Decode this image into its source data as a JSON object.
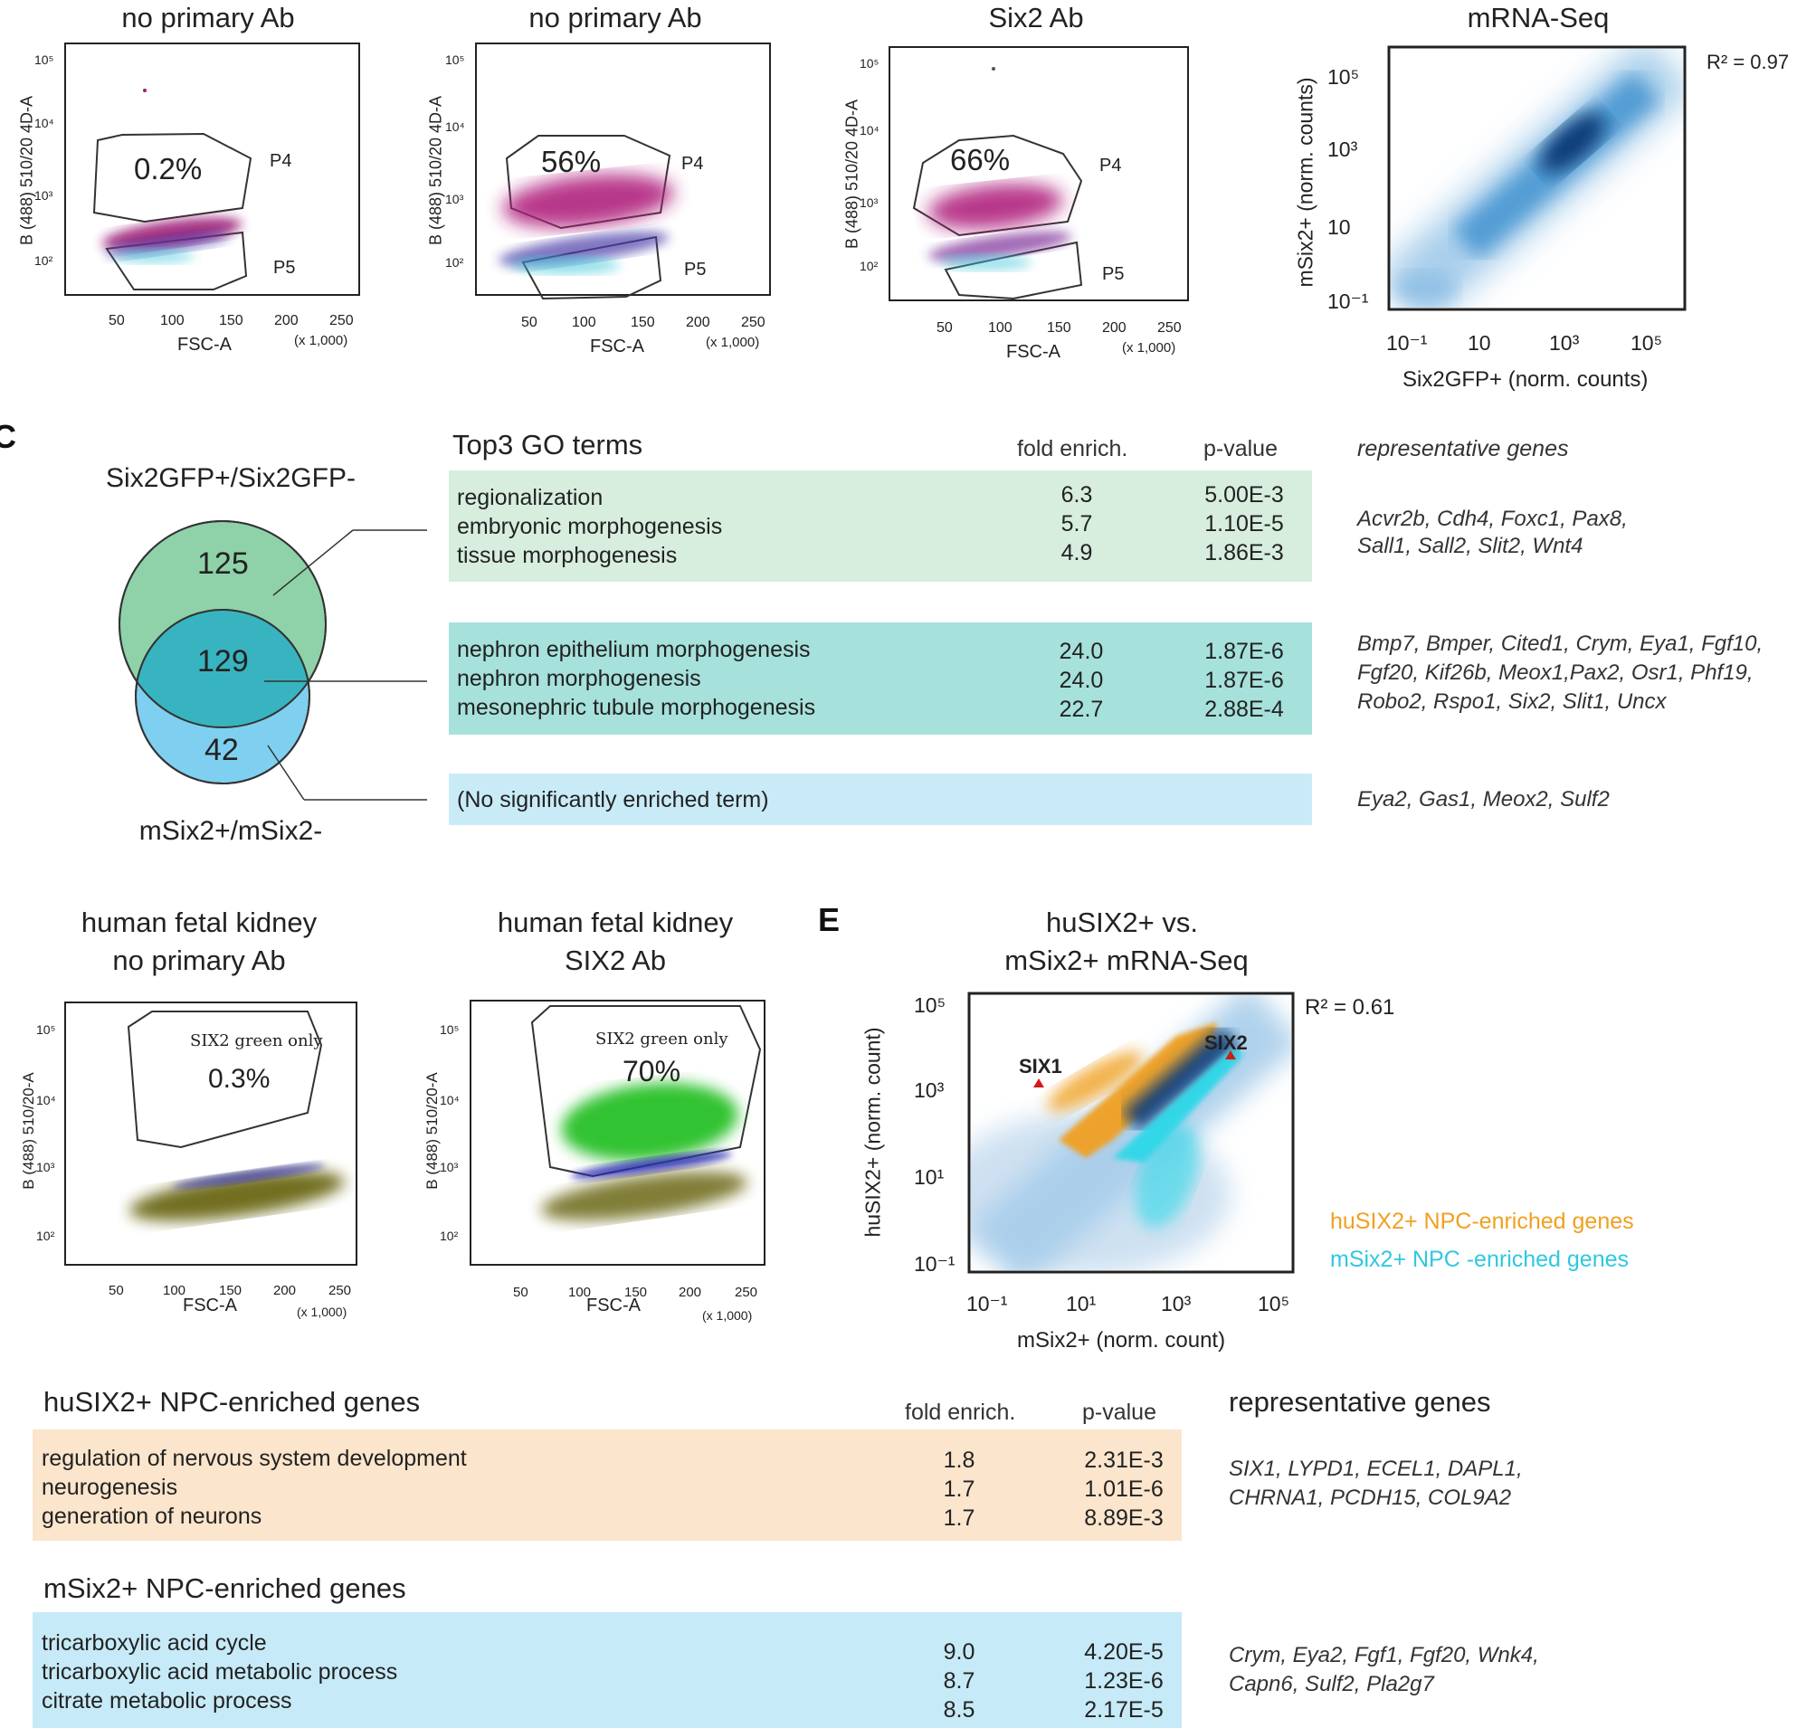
{
  "panel_b": {
    "plots": [
      {
        "title": "no primary Ab",
        "gate_p4_pct": "0.2%",
        "gate_p4": "P4",
        "gate_p5": "P5"
      },
      {
        "title": "no primary Ab",
        "gate_p4_pct": "56%",
        "gate_p4": "P4",
        "gate_p5": "P5"
      },
      {
        "title": "Six2 Ab",
        "gate_p4_pct": "66%",
        "gate_p4": "P4",
        "gate_p5": "P5"
      }
    ],
    "ylabel": "B (488) 510/20 4D-A",
    "xlabel": "FSC-A",
    "xscale_note": "(x 1,000)",
    "xticks": [
      "50",
      "100",
      "150",
      "200",
      "250"
    ],
    "yticks": [
      "10²",
      "10³",
      "10⁴",
      "10⁵"
    ]
  },
  "panel_mrna": {
    "title": "mRNA-Seq",
    "r2": "R² = 0.97",
    "xlabel": "Six2GFP+ (norm. counts)",
    "ylabel": "mSix2+ (norm. counts)",
    "ticks": [
      "10⁻¹",
      "10",
      "10³",
      "10⁵"
    ],
    "series_color": "#2a7fc0"
  },
  "panel_c": {
    "label": "C",
    "venn_top": "Six2GFP+/Six2GFP-",
    "venn_bottom": "mSix2+/mSix2-",
    "venn_counts": [
      "125",
      "129",
      "42"
    ],
    "go_header": "Top3 GO terms",
    "col_fold": "fold enrich.",
    "col_p": "p-value",
    "col_genes": "representative genes",
    "groups": [
      {
        "terms": [
          "regionalization",
          "embryonic morphogenesis",
          "tissue morphogenesis"
        ],
        "fold": [
          "6.3",
          "5.7",
          "4.9"
        ],
        "p": [
          "5.00E-3",
          "1.10E-5",
          "1.86E-3"
        ],
        "genes": [
          "Acvr2b, Cdh4, Foxc1, Pax8,",
          "Sall1, Sall2, Slit2, Wnt4"
        ],
        "color": "#d7eedf"
      },
      {
        "terms": [
          "nephron epithelium morphogenesis",
          "nephron morphogenesis",
          "mesonephric tubule morphogenesis"
        ],
        "fold": [
          "24.0",
          "24.0",
          "22.7"
        ],
        "p": [
          "1.87E-6",
          "1.87E-6",
          "2.88E-4"
        ],
        "genes": [
          "Bmp7, Bmper, Cited1, Crym, Eya1, Fgf10,",
          "Fgf20, Kif26b, Meox1,Pax2, Osr1, Phf19,",
          "Robo2, Rspo1, Six2, Slit1, Uncx"
        ],
        "color": "#a6e1dc"
      },
      {
        "terms": [
          "(No significantly enriched term)"
        ],
        "fold": [],
        "p": [],
        "genes": [
          "Eya2, Gas1, Meox2, Sulf2"
        ],
        "color": "#c9ebf8"
      }
    ]
  },
  "panel_d": {
    "plots": [
      {
        "title1": "human fetal kidney",
        "title2": "no primary Ab",
        "gate": "SIX2 green only",
        "pct": "0.3%"
      },
      {
        "title1": "human fetal kidney",
        "title2": "SIX2 Ab",
        "gate": "SIX2 green only",
        "pct": "70%"
      }
    ],
    "ylabel": "B (488) 510/20-A",
    "xlabel": "FSC-A",
    "xscale_note": "(x 1,000)",
    "xticks": [
      "50",
      "100",
      "150",
      "200",
      "250"
    ],
    "yticks": [
      "10²",
      "10³",
      "10⁴",
      "10⁵"
    ]
  },
  "panel_e": {
    "label": "E",
    "title1": "huSIX2+ vs.",
    "title2": "mSix2+ mRNA-Seq",
    "r2": "R² = 0.61",
    "xlabel": "mSix2+ (norm. count)",
    "ylabel": "huSIX2+ (norm. count)",
    "ticks": [
      "10⁻¹",
      "10¹",
      "10³",
      "10⁵"
    ],
    "gene1": "SIX1",
    "gene2": "SIX2",
    "legend_orange": "huSIX2+ NPC-enriched genes",
    "legend_cyan": "mSix2+ NPC -enriched genes",
    "orange": "#f0a020",
    "cyan": "#2fd8e8"
  },
  "panel_f": {
    "col_fold": "fold enrich.",
    "col_p": "p-value",
    "col_genes": "representative genes",
    "groups": [
      {
        "header": "huSIX2+ NPC-enriched genes",
        "terms": [
          "regulation of nervous system development",
          "neurogenesis",
          "generation of neurons"
        ],
        "fold": [
          "1.8",
          "1.7",
          "1.7"
        ],
        "p": [
          "2.31E-3",
          "1.01E-6",
          "8.89E-3"
        ],
        "genes": [
          "SIX1, LYPD1, ECEL1, DAPL1,",
          "CHRNA1, PCDH15, COL9A2"
        ],
        "color": "#fbe5cc"
      },
      {
        "header": "mSix2+ NPC-enriched genes",
        "terms": [
          "tricarboxylic acid cycle",
          "tricarboxylic acid metabolic process",
          "citrate metabolic process"
        ],
        "fold": [
          "9.0",
          "8.7",
          "8.5"
        ],
        "p": [
          "4.20E-5",
          "1.23E-6",
          "2.17E-5"
        ],
        "genes": [
          "Crym, Eya2, Fgf1, Fgf20, Wnk4,",
          "Capn6, Sulf2, Pla2g7"
        ],
        "color": "#c6eaf7"
      }
    ]
  }
}
